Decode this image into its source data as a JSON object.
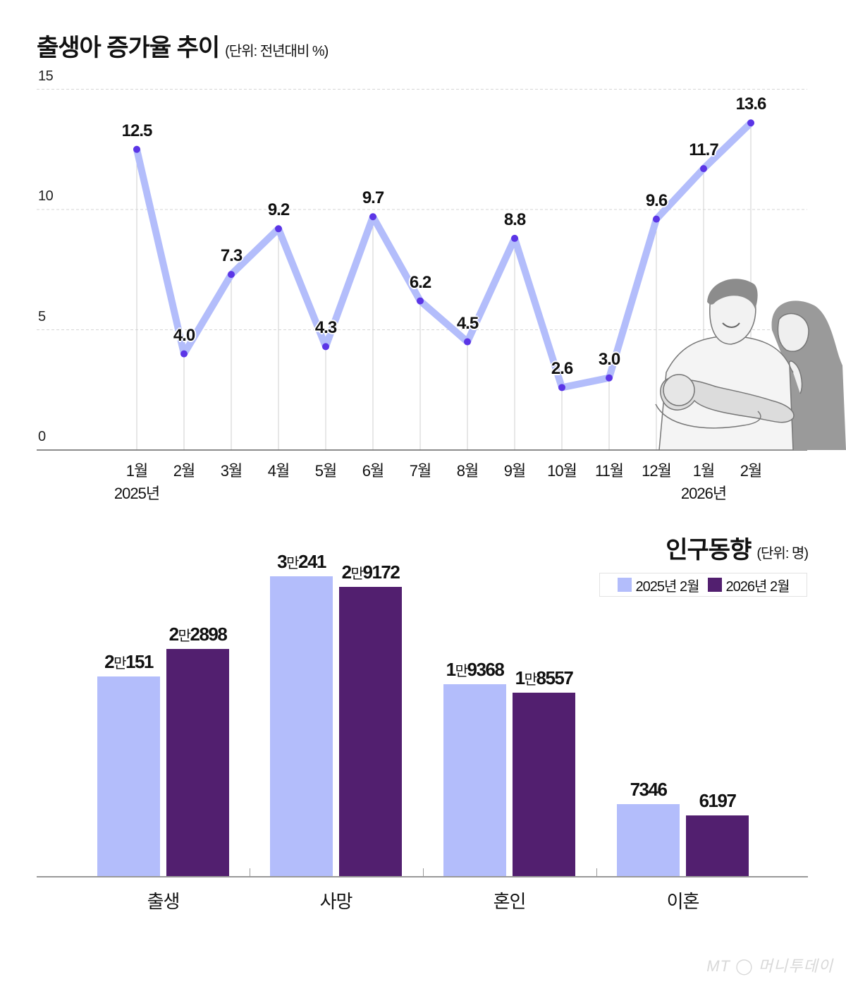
{
  "chart_data": [
    {
      "type": "line",
      "title": "출생아 증가율 추이",
      "unit": "(단위: 전년대비 %)",
      "xlabel": "",
      "ylabel": "",
      "ylim": [
        0,
        15
      ],
      "yticks": [
        "0",
        "5",
        "10",
        "15"
      ],
      "grid": true,
      "categories": [
        "1월",
        "2월",
        "3월",
        "4월",
        "5월",
        "6월",
        "7월",
        "8월",
        "9월",
        "10월",
        "11월",
        "12월",
        "1월",
        "2월"
      ],
      "year_labels": [
        {
          "index": 0,
          "label": "2025년"
        },
        {
          "index": 12,
          "label": "2026년"
        }
      ],
      "series": [
        {
          "name": "출생아 증가율",
          "values": [
            12.5,
            4.0,
            7.3,
            9.2,
            4.3,
            9.7,
            6.2,
            4.5,
            8.8,
            2.6,
            3.0,
            9.6,
            11.7,
            13.6
          ],
          "labels": [
            "12.5",
            "4.0",
            "7.3",
            "9.2",
            "4.3",
            "9.7",
            "6.2",
            "4.5",
            "8.8",
            "2.6",
            "3.0",
            "9.6",
            "11.7",
            "13.6"
          ]
        }
      ],
      "colors": {
        "line": "#b3bdfb",
        "point": "#5b35e6"
      }
    },
    {
      "type": "bar",
      "title": "인구동향",
      "unit": "(단위: 명)",
      "categories": [
        "출생",
        "사망",
        "혼인",
        "이혼"
      ],
      "series": [
        {
          "name": "2025년 2월",
          "values": [
            20151,
            30241,
            19368,
            7346
          ],
          "labels": [
            {
              "man": "2",
              "rest": "151"
            },
            {
              "man": "3",
              "rest": "241"
            },
            {
              "man": "1",
              "rest": "9368"
            },
            {
              "man": "",
              "rest": "7346"
            }
          ],
          "color": "#b3bdfb"
        },
        {
          "name": "2026년 2월",
          "values": [
            22898,
            29172,
            18557,
            6197
          ],
          "labels": [
            {
              "man": "2",
              "rest": "2898"
            },
            {
              "man": "2",
              "rest": "9172"
            },
            {
              "man": "1",
              "rest": "8557"
            },
            {
              "man": "",
              "rest": "6197"
            }
          ],
          "color": "#521f6f"
        }
      ],
      "man_suffix": "만",
      "legend_position": "top-right"
    }
  ],
  "watermark": "MT ◯ 머니투데이",
  "illustration": "parents-holding-newborn-illustration"
}
